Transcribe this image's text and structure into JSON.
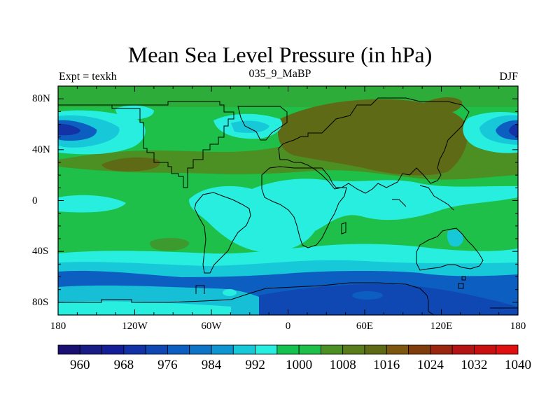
{
  "title": "Mean Sea Level Pressure (in hPa)",
  "left_string": "Expt = texkh",
  "center_string": "035_9_MaBP",
  "right_string": "DJF",
  "map": {
    "lon_range": [
      -180,
      180
    ],
    "lat_range": [
      -90,
      90
    ],
    "x_ticks": [
      {
        "value": -180,
        "label": "180"
      },
      {
        "value": -120,
        "label": "120W"
      },
      {
        "value": -60,
        "label": "60W"
      },
      {
        "value": 0,
        "label": "0"
      },
      {
        "value": 60,
        "label": "60E"
      },
      {
        "value": 120,
        "label": "120E"
      },
      {
        "value": 180,
        "label": "180"
      }
    ],
    "y_ticks": [
      {
        "value": 80,
        "label": "80N"
      },
      {
        "value": 40,
        "label": "40N"
      },
      {
        "value": 0,
        "label": "0"
      },
      {
        "value": -40,
        "label": "40S"
      },
      {
        "value": -80,
        "label": "80S"
      }
    ]
  },
  "colorbar": {
    "colors": [
      "#1a0f73",
      "#1a1c85",
      "#141e96",
      "#1232a6",
      "#1048b3",
      "#0c5fc0",
      "#0e74c8",
      "#0d96d0",
      "#17c9d8",
      "#28eee0",
      "#16c24f",
      "#1ec04a",
      "#4c8f22",
      "#5a7c1a",
      "#5e6a16",
      "#7d5610",
      "#7f3d0e",
      "#9a2610",
      "#b41414",
      "#c81010",
      "#e01010"
    ],
    "labels": [
      "960",
      "968",
      "976",
      "984",
      "992",
      "1000",
      "1008",
      "1016",
      "1024",
      "1032",
      "1040"
    ]
  },
  "colors": {
    "mid_green": "#3c9a2e",
    "olive": "#5e6a16",
    "green": "#1ec04a",
    "cyan": "#28eee0",
    "light_blue": "#17c9d8",
    "blue": "#0c5fc0",
    "dark_blue": "#1232a6"
  }
}
